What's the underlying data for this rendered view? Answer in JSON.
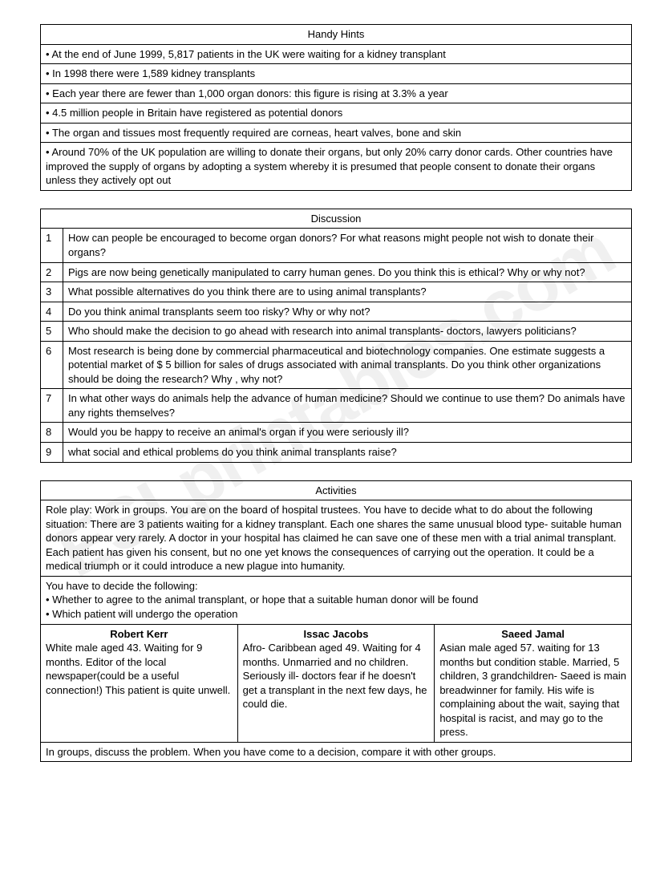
{
  "hints": {
    "title": "Handy Hints",
    "items": [
      "At the end of June 1999, 5,817 patients in the UK were waiting for a kidney transplant",
      "In 1998 there were 1,589 kidney transplants",
      "Each year there are fewer than 1,000 organ donors: this figure is rising at 3.3% a year",
      "4.5 million people in Britain have registered as potential donors",
      "The organ and tissues most frequently required are corneas, heart valves, bone and skin",
      "Around 70% of the UK population are willing to donate their organs, but only 20% carry donor cards. Other countries have improved the supply of organs by adopting a system whereby it is presumed that people consent to donate their organs unless they actively opt out"
    ]
  },
  "discussion": {
    "title": "Discussion",
    "rows": [
      {
        "n": "1",
        "q": "How can people be encouraged to become organ donors? For what reasons might people not wish to donate their organs?"
      },
      {
        "n": "2",
        "q": "Pigs are now being genetically manipulated to carry human genes. Do you think this is ethical? Why or why not?"
      },
      {
        "n": "3",
        "q": "What possible alternatives do you think there are to using animal transplants?"
      },
      {
        "n": "4",
        "q": "Do you think animal transplants seem too risky? Why or why not?"
      },
      {
        "n": "5",
        "q": "Who should make the decision to go ahead with research into animal transplants- doctors, lawyers politicians?"
      },
      {
        "n": "6",
        "q": "Most research is being done by commercial pharmaceutical and biotechnology companies. One estimate suggests a potential market of $ 5 billion for sales of drugs associated with animal transplants. Do you think other organizations should be doing the research? Why , why not?"
      },
      {
        "n": "7",
        "q": "In what other ways do animals help the advance of human medicine? Should we continue to use them? Do animals have any rights themselves?"
      },
      {
        "n": "8",
        "q": "Would you be happy to receive an animal's organ if you were seriously ill?"
      },
      {
        "n": "9",
        "q": "what social and ethical problems do you think animal transplants raise?"
      }
    ]
  },
  "activities": {
    "title": "Activities",
    "intro": "Role play: Work in groups. You are on the board of hospital trustees. You have to decide what to do about the following situation: There are 3 patients waiting for a kidney transplant. Each one shares the same unusual blood type- suitable human donors appear very rarely. A doctor in your hospital has claimed he can save one of these men with a trial animal transplant. Each patient has given his consent, but no one yet knows the consequences of carrying out the operation. It could be a medical triumph or it could introduce a new plague into humanity.",
    "decide_lead": "You have to decide the following:",
    "decide_items": [
      "Whether to agree to the animal transplant, or hope that a suitable human donor will be found",
      "Which patient will undergo the operation"
    ],
    "patients": [
      {
        "name": "Robert Kerr",
        "desc": "White male aged 43. Waiting for 9 months. Editor of the local newspaper(could be a useful connection!) This patient is quite unwell."
      },
      {
        "name": "Issac Jacobs",
        "desc": "Afro- Caribbean aged 49. Waiting for 4 months. Unmarried and no children. Seriously ill- doctors fear if he doesn't get a transplant in the next few days, he could die."
      },
      {
        "name": "Saeed Jamal",
        "desc": "Asian male aged 57. waiting for 13 months but condition stable. Married, 5 children, 3 grandchildren- Saeed is main breadwinner for family. His wife is complaining about the wait, saying that hospital is racist, and may go to the press."
      }
    ],
    "outro": "In groups, discuss the problem. When you have come to a decision, compare it with other groups."
  }
}
